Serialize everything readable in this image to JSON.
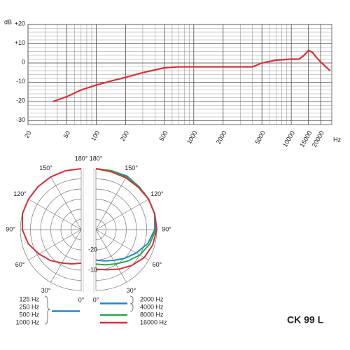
{
  "chart_data": [
    {
      "type": "line",
      "xlabel": "Hz",
      "ylabel": "dB",
      "log_x": true,
      "color": "#d9303a",
      "xlim": [
        20,
        26000
      ],
      "ylim": [
        -32,
        20
      ],
      "xticks": [
        20,
        50,
        100,
        200,
        500,
        1000,
        2000,
        5000,
        10000,
        15000,
        20000
      ],
      "yticks": [
        {
          "value": 20,
          "label": "+20"
        },
        {
          "value": 10,
          "label": "+10"
        },
        0,
        -10,
        -20,
        -30
      ],
      "x_grid": [
        20,
        30,
        40,
        50,
        60,
        70,
        80,
        90,
        100,
        200,
        300,
        400,
        500,
        600,
        700,
        800,
        900,
        1000,
        2000,
        3000,
        4000,
        5000,
        6000,
        7000,
        8000,
        9000,
        10000,
        15000,
        20000
      ],
      "y_grid": [
        -30,
        -28,
        -26,
        -24,
        -22,
        -20,
        -18,
        -16,
        -14,
        -12,
        -10,
        -8,
        -6,
        -4,
        -2,
        0,
        2,
        4,
        6,
        8,
        10,
        12,
        14,
        16,
        18,
        20
      ],
      "x": [
        36,
        50,
        70,
        100,
        150,
        200,
        300,
        500,
        700,
        1000,
        2000,
        4000,
        5000,
        7000,
        10000,
        12000,
        13500,
        15000,
        16500,
        18000,
        20000,
        25000
      ],
      "values": [
        -20,
        -17.5,
        -14,
        -11.5,
        -9,
        -7.5,
        -5,
        -2.5,
        -2,
        -2,
        -2,
        -2,
        0,
        1.5,
        2,
        2,
        4,
        6.5,
        5.5,
        3,
        0.5,
        -4
      ]
    },
    {
      "type": "polar",
      "rlim": [
        -30,
        0
      ],
      "rticks": [
        -25,
        -20,
        -15,
        -10,
        -5,
        0
      ],
      "rtick_labels": [
        -20,
        -10
      ],
      "angles": [
        0,
        15,
        30,
        45,
        60,
        75,
        90,
        105,
        120,
        135,
        150,
        165,
        180
      ],
      "angle_ticks": [
        {
          "value": 0,
          "label": "0°"
        },
        {
          "value": 30,
          "label": "30°"
        },
        {
          "value": 60,
          "label": "60°"
        },
        {
          "value": 90,
          "label": "90°"
        },
        {
          "value": 120,
          "label": "120°"
        },
        {
          "value": 150,
          "label": "150°"
        },
        {
          "value": 180,
          "label": "180°"
        }
      ],
      "series": [
        {
          "names": [
            "125 Hz",
            "250 Hz",
            "500 Hz",
            "1000 Hz"
          ],
          "side": "left",
          "color": "#1e88c8",
          "line_color": "#d9303a",
          "values": [
            -13.5,
            -12.5,
            -11,
            -8.5,
            -6,
            -3,
            -1,
            0,
            0,
            0,
            0,
            0,
            0
          ]
        },
        {
          "names": [
            "2000 Hz",
            "4000 Hz"
          ],
          "side": "right",
          "color": "#1e88c8",
          "values": [
            -15,
            -14,
            -12.5,
            -10,
            -7,
            -3.5,
            -1,
            0,
            0,
            0,
            0.5,
            0,
            0
          ]
        },
        {
          "names": [
            "8000 Hz"
          ],
          "side": "right",
          "color": "#2aa84a",
          "values": [
            -13,
            -12,
            -10.5,
            -8,
            -5,
            -2.5,
            -0.5,
            0,
            0,
            0,
            0,
            0,
            0
          ]
        },
        {
          "names": [
            "16000 Hz"
          ],
          "side": "right",
          "color": "#d9303a",
          "values": [
            -10.5,
            -9.5,
            -7.5,
            -5,
            -2.5,
            -1,
            0,
            0,
            0,
            -0.5,
            -0.5,
            -0.5,
            0
          ]
        }
      ]
    }
  ],
  "model": "CK 99 L"
}
